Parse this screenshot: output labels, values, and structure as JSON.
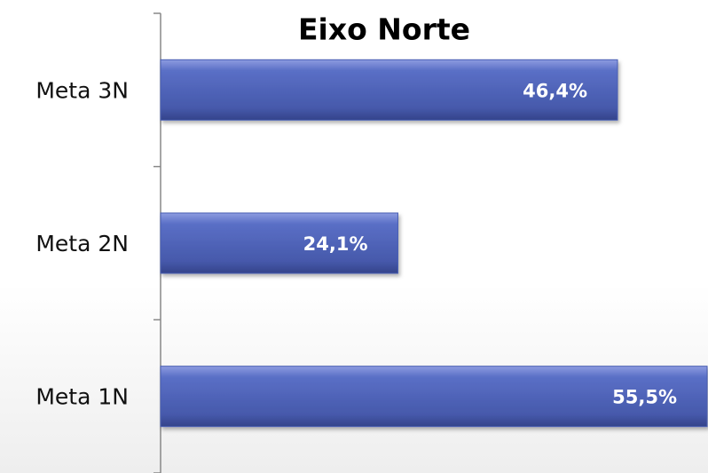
{
  "chart_data": {
    "type": "bar",
    "orientation": "horizontal",
    "title": "Eixo Norte",
    "categories": [
      "Meta 3N",
      "Meta 2N",
      "Meta 1N"
    ],
    "values": [
      46.4,
      24.1,
      55.5
    ],
    "value_labels": [
      "46,4%",
      "24,1%",
      "55,5%"
    ],
    "color": "#4a5fb4"
  }
}
